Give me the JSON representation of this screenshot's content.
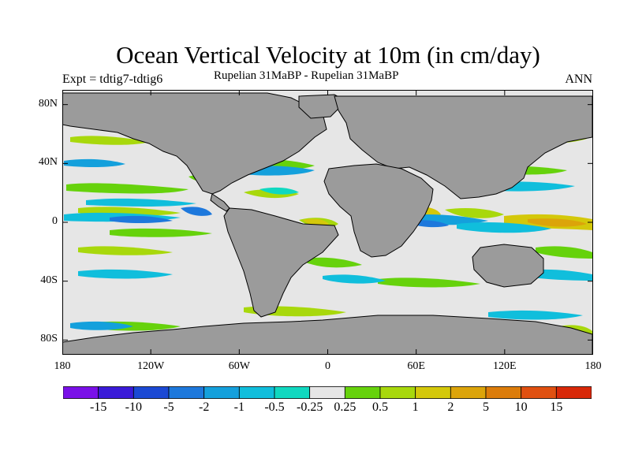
{
  "title": "Ocean Vertical Velocity at 10m (in cm/day)",
  "experiment": "Expt = tdtig7-tdtig6",
  "subtitle": "Rupelian  31MaBP - Rupelian  31MaBP",
  "season": "ANN",
  "map": {
    "lon_range": [
      -180,
      180
    ],
    "lat_range": [
      -90,
      90
    ],
    "lat_ticks": [
      {
        "value": 80,
        "label": "80N"
      },
      {
        "value": 40,
        "label": "40N"
      },
      {
        "value": 0,
        "label": "0"
      },
      {
        "value": -40,
        "label": "40S"
      },
      {
        "value": -80,
        "label": "80S"
      }
    ],
    "lon_ticks": [
      {
        "value": -180,
        "label": "180"
      },
      {
        "value": -120,
        "label": "120W"
      },
      {
        "value": -60,
        "label": "60W"
      },
      {
        "value": 0,
        "label": "0"
      },
      {
        "value": 60,
        "label": "60E"
      },
      {
        "value": 120,
        "label": "120E"
      },
      {
        "value": 180,
        "label": "180"
      }
    ],
    "land_color": "#9b9b9b",
    "ocean_near_zero_color": "#e6e6e6"
  },
  "colorbar": {
    "colors": [
      "#7a10e8",
      "#3a1ad8",
      "#1b49d4",
      "#1d78dc",
      "#14a0dc",
      "#10bedc",
      "#10d8c0",
      "#e6e6e6",
      "#66d20c",
      "#a8d80c",
      "#d4c80a",
      "#dca40a",
      "#dc7c0a",
      "#e05010",
      "#d82808"
    ],
    "labels": [
      "-15",
      "-10",
      "-5",
      "-2",
      "-1",
      "-0.5",
      "-0.25",
      "0.25",
      "0.5",
      "1",
      "2",
      "5",
      "10",
      "15"
    ]
  }
}
